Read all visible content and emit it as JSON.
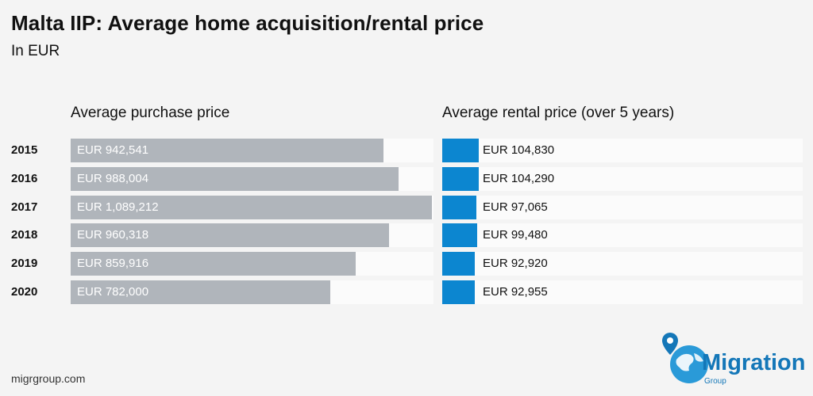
{
  "header": {
    "title": "Malta IIP: Average home acquisition/rental price",
    "subtitle": "In EUR"
  },
  "chart_data": {
    "type": "bar",
    "title": "Malta IIP: Average home acquisition/rental price",
    "subtitle": "In EUR",
    "categories": [
      "2015",
      "2016",
      "2017",
      "2018",
      "2019",
      "2020"
    ],
    "series": [
      {
        "name": "Average purchase price",
        "values": [
          942541,
          988004,
          1089212,
          960318,
          859916,
          782000
        ],
        "labels": [
          "EUR 942,541",
          "EUR 988,004",
          "EUR 1,089,212",
          "EUR 960,318",
          "EUR 859,916",
          "EUR 782,000"
        ],
        "color": "#b0b5bb"
      },
      {
        "name": "Average rental price (over 5 years)",
        "values": [
          104830,
          104290,
          97065,
          99480,
          92920,
          92955
        ],
        "labels": [
          "EUR 104,830",
          "EUR 104,290",
          "EUR 97,065",
          "EUR 99,480",
          "EUR 92,920",
          "EUR 92,955"
        ],
        "color": "#0c86d0"
      }
    ]
  },
  "footer": {
    "source": "migrgroup.com"
  },
  "logo": {
    "word": "Migration",
    "sub": "Group",
    "icon": "globe-pin-icon",
    "color": "#1477b8"
  }
}
